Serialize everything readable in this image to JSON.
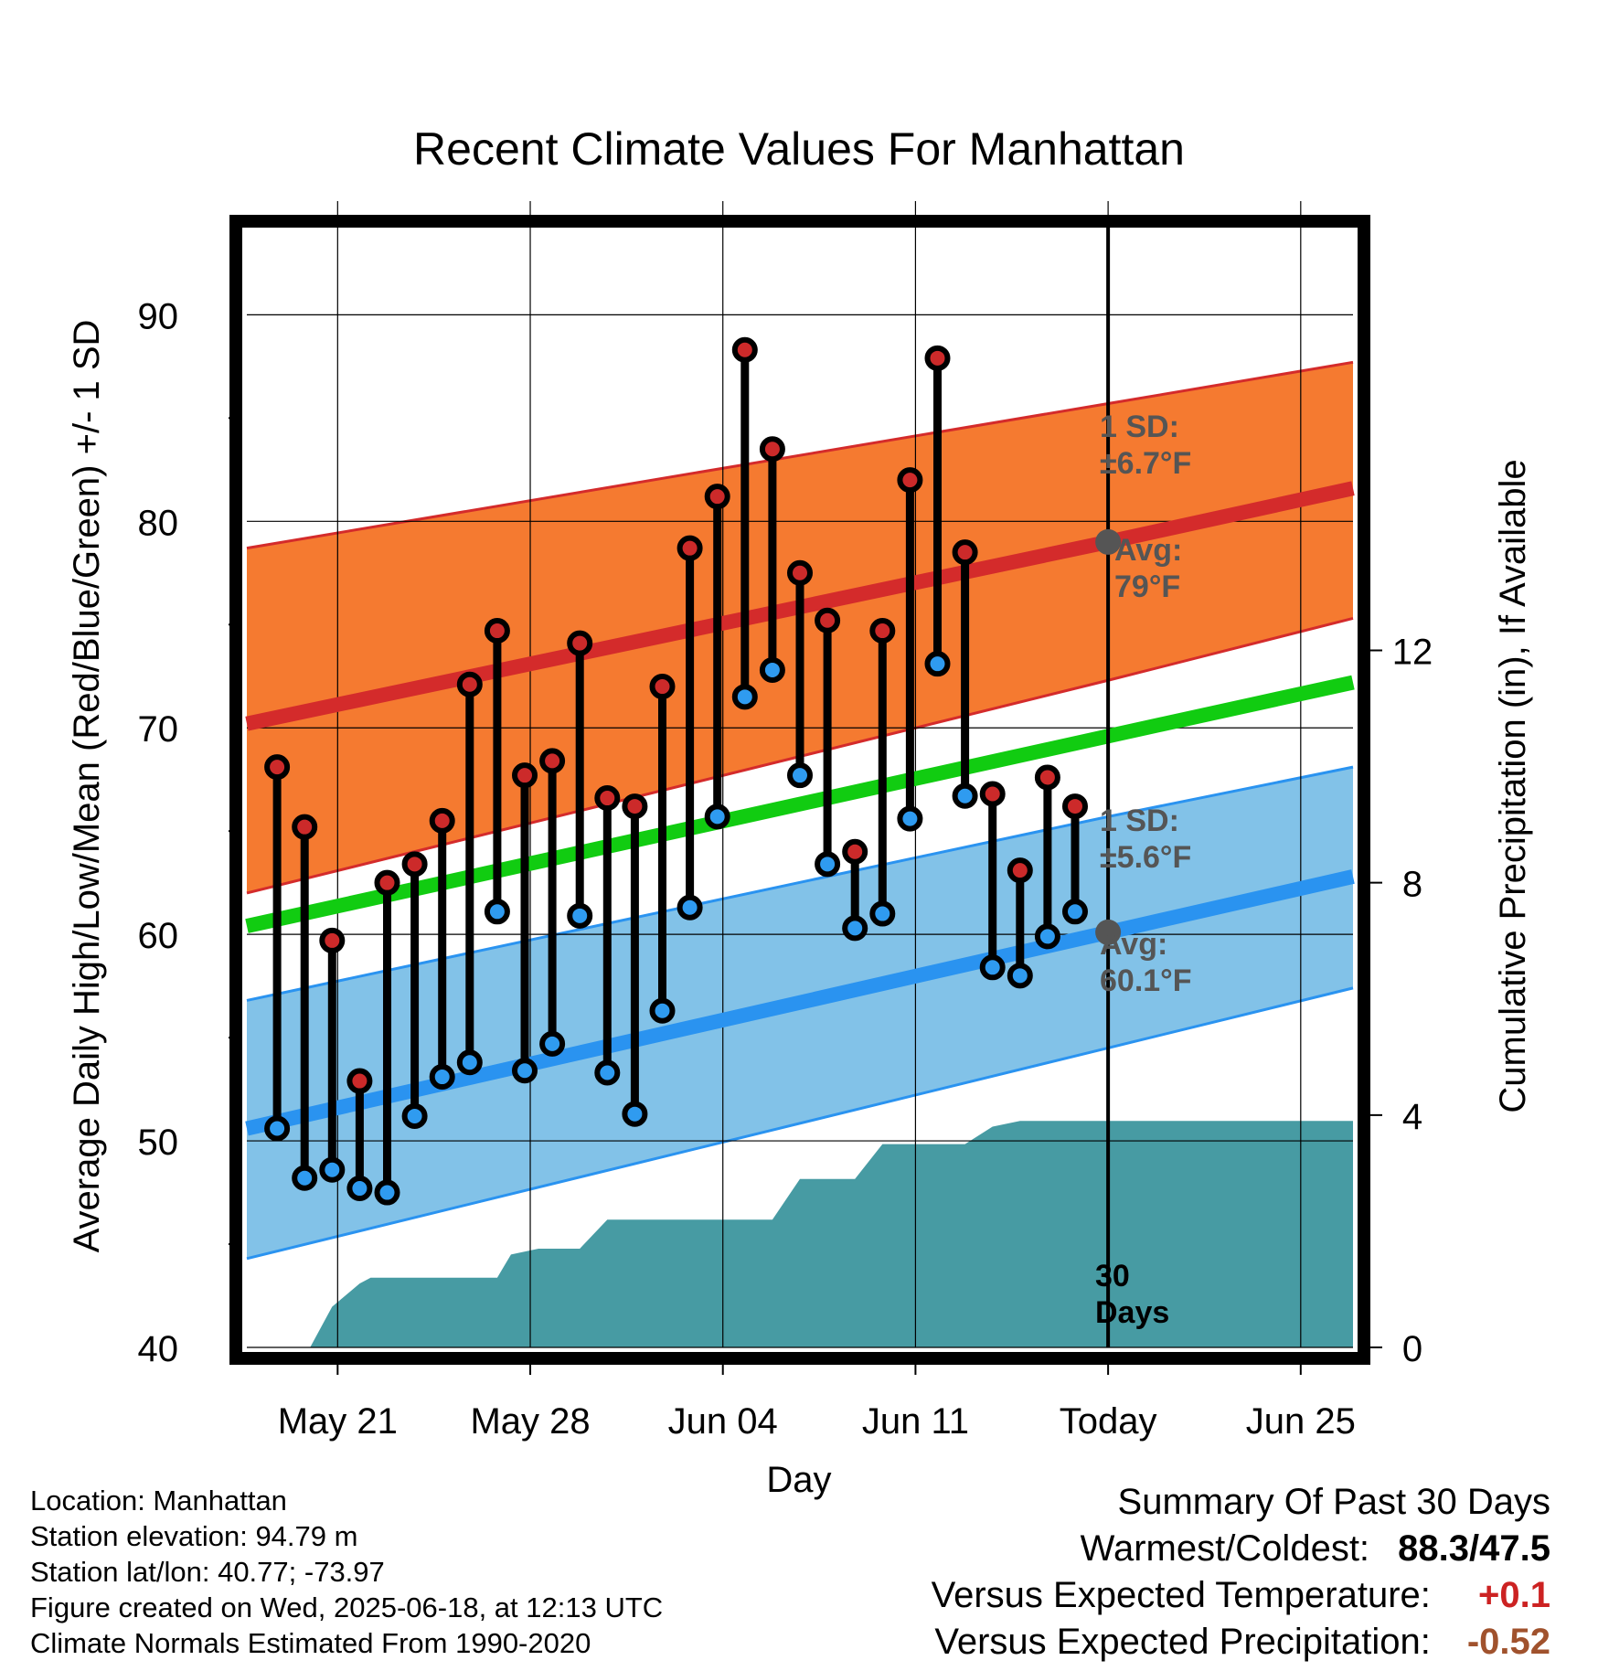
{
  "chart_data": {
    "type": "line",
    "title": "Recent Climate Values For Manhattan",
    "xlabel": "Day",
    "ylabel": "Average Daily High/Low/Mean (Red/Blue/Green) +/- 1 SD",
    "y2label": "Cumulative Precipitation (in), If Available",
    "ylim": [
      40,
      94
    ],
    "y2lim": [
      0,
      19.2
    ],
    "yticks": [
      "40",
      "50",
      "60",
      "70",
      "80",
      "90"
    ],
    "y2ticks": [
      "0",
      "4",
      "8",
      "12"
    ],
    "xticks": [
      {
        "day": 21,
        "label": "May 21"
      },
      {
        "day": 28,
        "label": "May 28"
      },
      {
        "day": 35,
        "label": "Jun 04"
      },
      {
        "day": 42,
        "label": "Jun 11"
      },
      {
        "day": 49,
        "label": "Today"
      },
      {
        "day": 56,
        "label": "Jun 25"
      }
    ],
    "xlim_day": [
      17.7,
      57.9
    ],
    "today_day": 49,
    "normals": {
      "days": [
        17.7,
        49,
        57.9
      ],
      "high_avg": [
        70.2,
        79,
        81.6
      ],
      "high_band_top": [
        78.7,
        85.7,
        87.7
      ],
      "high_band_bottom": [
        62.0,
        72.3,
        75.3
      ],
      "mean_avg": [
        60.4,
        69.6,
        72.2
      ],
      "low_avg": [
        50.6,
        60.1,
        62.8
      ],
      "low_band_top": [
        56.8,
        65.7,
        68.1
      ],
      "low_band_bottom": [
        44.3,
        54.5,
        57.4
      ]
    },
    "series": [
      {
        "name": "High",
        "color": "#cc2a2a",
        "values": [
          68.1,
          65.2,
          59.7,
          52.9,
          62.5,
          63.4,
          65.5,
          72.1,
          74.7,
          67.7,
          68.4,
          74.1,
          66.6,
          66.2,
          72.0,
          78.7,
          81.2,
          88.3,
          83.5,
          77.5,
          75.2,
          64.0,
          74.7,
          82.0,
          87.9,
          78.5,
          66.8,
          63.1,
          67.6,
          66.2
        ]
      },
      {
        "name": "Low",
        "color": "#2f9bf0",
        "values": [
          50.6,
          48.2,
          48.6,
          47.7,
          47.5,
          51.2,
          53.1,
          53.8,
          61.1,
          53.4,
          54.7,
          60.9,
          53.3,
          51.3,
          56.3,
          61.3,
          65.7,
          71.5,
          72.8,
          67.7,
          63.4,
          60.3,
          61.0,
          65.6,
          73.1,
          66.7,
          58.4,
          58.0,
          59.9,
          61.1
        ]
      }
    ],
    "obs_days": [
      18.8,
      19.8,
      20.8,
      21.8,
      22.8,
      23.8,
      24.8,
      25.8,
      26.8,
      27.8,
      28.8,
      29.8,
      30.8,
      31.8,
      32.8,
      33.8,
      34.8,
      35.8,
      36.8,
      37.8,
      38.8,
      39.8,
      40.8,
      41.8,
      42.8,
      43.8,
      44.8,
      45.8,
      46.8,
      47.8
    ],
    "precip": {
      "days": [
        17.7,
        20.0,
        20.8,
        21.8,
        22.2,
        25.8,
        26.8,
        27.3,
        28.3,
        29.8,
        30.8,
        35.8,
        36.8,
        37.8,
        38.8,
        39.8,
        40.8,
        42.8,
        43.8,
        44.8,
        45.8,
        57.9
      ],
      "values": [
        0,
        0,
        0.7,
        1.1,
        1.2,
        1.2,
        1.2,
        1.6,
        1.7,
        1.7,
        2.2,
        2.2,
        2.2,
        2.9,
        2.9,
        2.9,
        3.5,
        3.5,
        3.5,
        3.8,
        3.9,
        3.9
      ]
    },
    "annotations": {
      "high_sd": "1 SD:\n±6.7°F",
      "high_avg": "Avg:\n79°F",
      "low_sd": "1 SD:\n±5.6°F",
      "low_avg": "Avg:\n60.1°F",
      "precip_days": "30\nDays"
    },
    "colors": {
      "high_band": "#f57a30",
      "high_line": "#d42b2b",
      "low_band": "#82c2e8",
      "low_line": "#2a93f0",
      "mean_line": "#11cc11",
      "precip_fill": "#479ba3",
      "annotation_text": "#555555"
    },
    "grid": true
  },
  "info": {
    "location": "Location: Manhattan",
    "elevation": "Station elevation: 94.79 m",
    "latlon": "Station lat/lon: 40.77; -73.97",
    "created": "Figure created on Wed, 2025-06-18, at 12:13 UTC",
    "normals": "Climate Normals Estimated From 1990-2020"
  },
  "summary": {
    "heading": "Summary Of Past 30 Days",
    "warmest_label": "Warmest/Coldest:",
    "warmest_value": "88.3/47.5",
    "temp_label": "Versus Expected Temperature:",
    "temp_value": "+0.1",
    "temp_color": "#cc2222",
    "precip_label": "Versus Expected Precipitation:",
    "precip_value": "-0.52",
    "precip_color": "#a0522d"
  }
}
